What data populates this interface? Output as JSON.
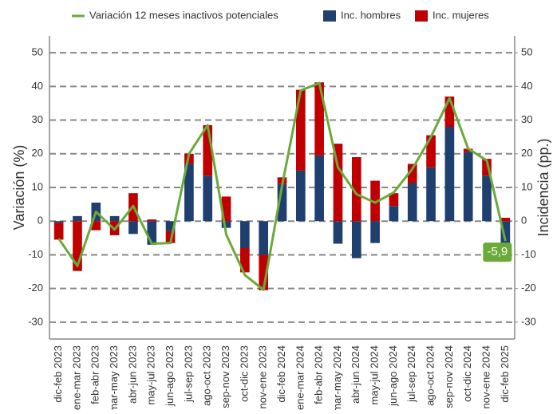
{
  "chart_data": {
    "type": "stacked-bar-line",
    "categories": [
      "dic-feb 2023",
      "ene-mar 2023",
      "feb-abr 2023",
      "mar-may 2023",
      "abr-jun 2023",
      "may-jul 2023",
      "jun-ago 2023",
      "jul-sep 2023",
      "ago-oct 2023",
      "sep-nov 2023",
      "oct-dic 2023",
      "nov-ene 2023",
      "dic-feb 2024",
      "ene-mar 2024",
      "feb-abr 2024",
      "mar-may 2024",
      "abr-jun 2024",
      "may-jul 2024",
      "jun-ago 2024",
      "jul-sep 2024",
      "ago-oct 2024",
      "sep-nov 2024",
      "oct-dic 2024",
      "nov-ene 2024",
      "dic-feb 2025"
    ],
    "series": [
      {
        "name": "Variación 12 meses inactivos potenciales",
        "color": "#6aaa3a",
        "kind": "line",
        "values": [
          -5.2,
          -13.3,
          2.8,
          -2.5,
          4.5,
          -6.7,
          -6.5,
          20,
          28.5,
          -4,
          -16,
          -20.4,
          10.5,
          38.8,
          41,
          16,
          8,
          5.5,
          8.5,
          15.5,
          25,
          36.5,
          21.5,
          18,
          -5.9
        ],
        "value_labels": [
          null,
          null,
          null,
          null,
          null,
          null,
          null,
          null,
          null,
          null,
          null,
          null,
          null,
          null,
          null,
          null,
          null,
          null,
          null,
          null,
          null,
          null,
          null,
          null,
          "-5,9"
        ]
      },
      {
        "name": "Inc. hombres",
        "color": "#1f3f6e",
        "kind": "bar",
        "axis": "y2",
        "values": [
          -0.5,
          1.5,
          5.5,
          1.5,
          -3.8,
          -7,
          -3,
          17,
          13.5,
          -2,
          -8,
          -10,
          11,
          15,
          19.5,
          -6.7,
          -11,
          -6.5,
          4.5,
          11.3,
          16,
          28,
          20.5,
          13.5,
          -7
        ]
      },
      {
        "name": "Inc. mujeres",
        "color": "#c00000",
        "kind": "bar",
        "axis": "y2",
        "values": [
          -5,
          -14.8,
          -2.7,
          -4.2,
          8.3,
          0.5,
          -3.5,
          3,
          15,
          7.3,
          -7.2,
          -10.5,
          2,
          24,
          21.7,
          23,
          19,
          12,
          3.8,
          5.7,
          9.5,
          9,
          1,
          5,
          1
        ]
      }
    ],
    "ylabel": "Variación (%)",
    "y2label": "Incidencia (pp.)",
    "ylim": [
      -35,
      55
    ],
    "yticks": [
      -30,
      -20,
      -10,
      0,
      10,
      20,
      30,
      40,
      50
    ],
    "y2lim": [
      -35,
      55
    ],
    "y2ticks": [
      -30,
      -20,
      -10,
      0,
      10,
      20,
      30,
      40,
      50
    ],
    "grid": true
  }
}
